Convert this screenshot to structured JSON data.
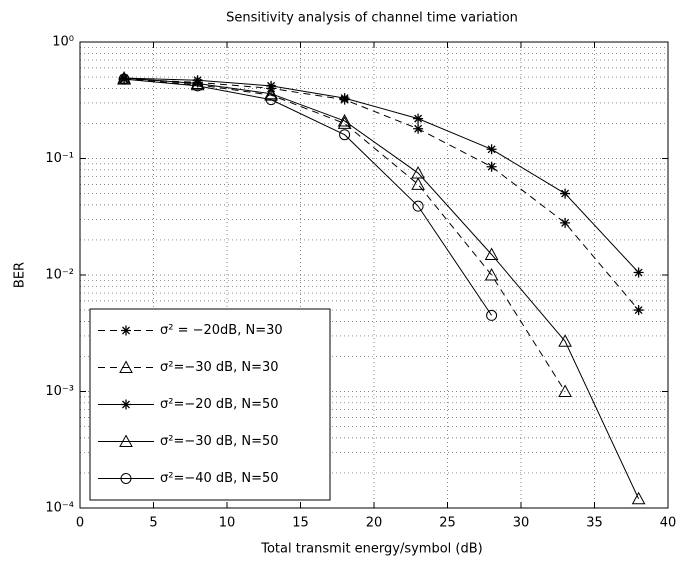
{
  "chart_data": {
    "type": "line",
    "title": "Sensitivity analysis of channel time variation",
    "xlabel": "Total transmit energy/symbol (dB)",
    "ylabel": "BER",
    "x": [
      3,
      8,
      13,
      18,
      23,
      28,
      33,
      38
    ],
    "series": [
      {
        "name": "σ² = −20dB, N=30",
        "color": "#000000",
        "linestyle": "dashed",
        "marker": "star",
        "values": [
          0.48,
          0.45,
          0.4,
          0.32,
          0.18,
          0.085,
          0.028,
          0.005
        ]
      },
      {
        "name": "σ²=−30 dB, N=30",
        "color": "#000000",
        "linestyle": "dashed",
        "marker": "triangle",
        "values": [
          0.48,
          0.43,
          0.35,
          0.2,
          0.06,
          0.01,
          0.001,
          null
        ]
      },
      {
        "name": "σ²=−20 dB, N=50",
        "color": "#000000",
        "linestyle": "solid",
        "marker": "star",
        "values": [
          0.49,
          0.47,
          0.42,
          0.33,
          0.22,
          0.12,
          0.05,
          0.0105
        ]
      },
      {
        "name": "σ²=−30 dB, N=50",
        "color": "#000000",
        "linestyle": "solid",
        "marker": "triangle",
        "values": [
          0.49,
          0.44,
          0.36,
          0.21,
          0.075,
          0.015,
          0.0027,
          0.00012
        ]
      },
      {
        "name": "σ²=−40 dB, N=50",
        "color": "#000000",
        "linestyle": "solid",
        "marker": "circle",
        "values": [
          0.48,
          0.42,
          0.32,
          0.16,
          0.039,
          0.0045,
          null,
          null
        ]
      }
    ],
    "xlim": [
      0,
      40
    ],
    "xticks": [
      0,
      5,
      10,
      15,
      20,
      25,
      30,
      35,
      40
    ],
    "ylim": [
      0.0001,
      1
    ],
    "ylog": true,
    "yticks": [
      {
        "value": 1,
        "label": "10⁰"
      },
      {
        "value": 0.1,
        "label": "10⁻¹"
      },
      {
        "value": 0.01,
        "label": "10⁻²"
      },
      {
        "value": 0.001,
        "label": "10⁻³"
      },
      {
        "value": 0.0001,
        "label": "10⁻⁴"
      }
    ],
    "grid": true,
    "yminor": true,
    "legend": "lower left"
  }
}
